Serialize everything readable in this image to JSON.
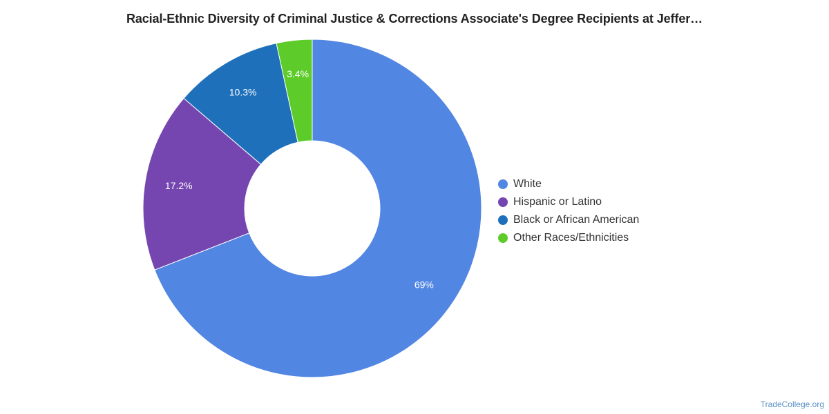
{
  "chart_data": {
    "type": "pie",
    "title": "Racial-Ethnic Diversity of Criminal Justice & Corrections Associate's Degree Recipients at Jeffer…",
    "donut": true,
    "legend_position": "right",
    "slices": [
      {
        "name": "White",
        "value": 69,
        "label": "69%",
        "color": "#5286e3"
      },
      {
        "name": "Hispanic or Latino",
        "value": 17.2,
        "label": "17.2%",
        "color": "#7646b0"
      },
      {
        "name": "Black or African American",
        "value": 10.3,
        "label": "10.3%",
        "color": "#1f70bb"
      },
      {
        "name": "Other Races/Ethnicities",
        "value": 3.4,
        "label": "3.4%",
        "color": "#5dcc2b"
      }
    ]
  },
  "footer": {
    "credit": "TradeCollege.org"
  }
}
